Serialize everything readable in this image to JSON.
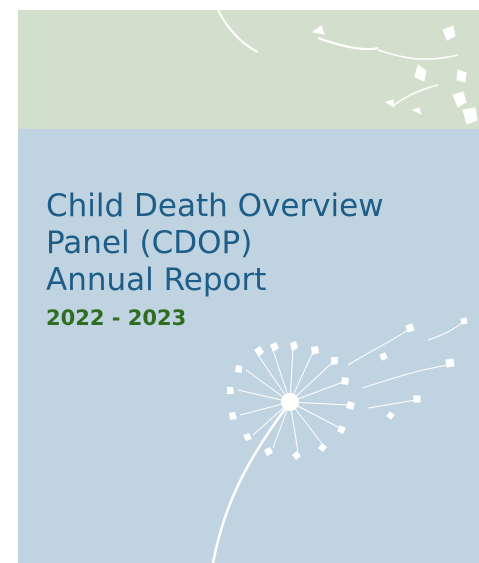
{
  "cover": {
    "title_lines": [
      "Child Death Overview",
      "Panel (CDOP)",
      "Annual Report"
    ],
    "year": "2022 - 2023"
  },
  "colors": {
    "top_band": "#d3dfcd",
    "main_band": "#c0d3e0",
    "title": "#1d5d88",
    "year": "#2e6d22",
    "artwork": "#ffffff"
  },
  "icons": {
    "artwork": "dandelion-illustration",
    "corner": "floating-seeds-illustration"
  }
}
